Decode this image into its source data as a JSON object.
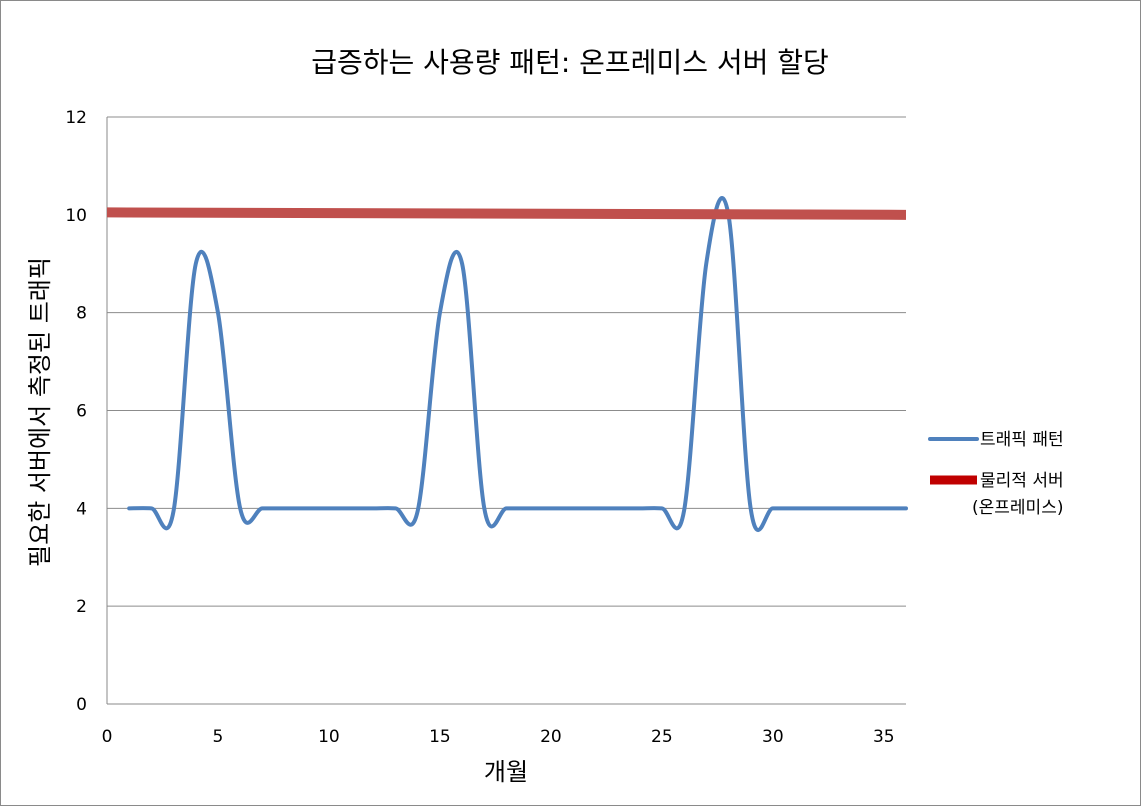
{
  "chart_data": {
    "type": "line",
    "title": "급증하는 사용량 패턴: 온프레미스 서버 할당",
    "xlabel": "개월",
    "ylabel": "필요한 서버에서 측정된 트래픽",
    "xlim": [
      0,
      36
    ],
    "ylim": [
      0,
      12
    ],
    "x_ticks": [
      "0",
      "5",
      "10",
      "15",
      "20",
      "25",
      "30",
      "35"
    ],
    "y_ticks": [
      "0",
      "2",
      "4",
      "6",
      "8",
      "10",
      "12"
    ],
    "grid": "horizontal",
    "legend_position": "right",
    "series": [
      {
        "name": "트래픽 패턴",
        "color": "#4f81bd",
        "points": [
          [
            1,
            4
          ],
          [
            2,
            4
          ],
          [
            3,
            3.95
          ],
          [
            4,
            9
          ],
          [
            5,
            8
          ],
          [
            6,
            4
          ],
          [
            7,
            4
          ],
          [
            8,
            4
          ],
          [
            9,
            4
          ],
          [
            10,
            4
          ],
          [
            11,
            4
          ],
          [
            12,
            4
          ],
          [
            13,
            4
          ],
          [
            14,
            3.95
          ],
          [
            15,
            8
          ],
          [
            16,
            9
          ],
          [
            17,
            4
          ],
          [
            18,
            4
          ],
          [
            19,
            4
          ],
          [
            20,
            4
          ],
          [
            21,
            4
          ],
          [
            22,
            4
          ],
          [
            23,
            4
          ],
          [
            24,
            4
          ],
          [
            25,
            4
          ],
          [
            26,
            3.95
          ],
          [
            27,
            9
          ],
          [
            28,
            10
          ],
          [
            29,
            4
          ],
          [
            30,
            4
          ],
          [
            31,
            4
          ],
          [
            32,
            4
          ],
          [
            33,
            4
          ],
          [
            34,
            4
          ],
          [
            35,
            4
          ],
          [
            36,
            4
          ]
        ]
      },
      {
        "name": "물리적 서버\n(온프레미스)",
        "color": "#c0504d",
        "points": [
          [
            0,
            10.05
          ],
          [
            36,
            10.0
          ]
        ]
      }
    ]
  }
}
